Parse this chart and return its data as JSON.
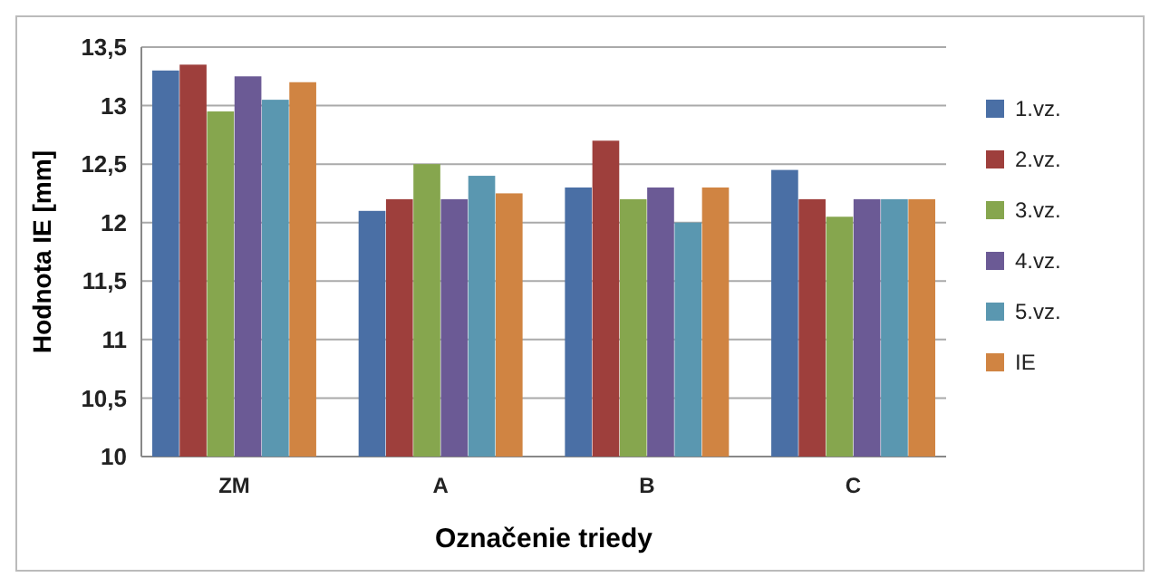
{
  "chart_data": {
    "type": "bar",
    "xlabel": "Označenie triedy",
    "ylabel": "Hodnota IE [mm]",
    "categories": [
      "ZM",
      "A",
      "B",
      "C"
    ],
    "series": [
      {
        "name": "1.vz.",
        "color": "#4a6fa5",
        "values": [
          13.3,
          12.1,
          12.3,
          12.45
        ]
      },
      {
        "name": "2.vz.",
        "color": "#9e3f3c",
        "values": [
          13.35,
          12.2,
          12.7,
          12.2
        ]
      },
      {
        "name": "3.vz.",
        "color": "#86a64e",
        "values": [
          12.95,
          12.5,
          12.2,
          12.05
        ]
      },
      {
        "name": "4.vz.",
        "color": "#6b5a95",
        "values": [
          13.25,
          12.2,
          12.3,
          12.2
        ]
      },
      {
        "name": "5.vz.",
        "color": "#5a97b0",
        "values": [
          13.05,
          12.4,
          12.0,
          12.2
        ]
      },
      {
        "name": "IE",
        "color": "#d08442",
        "values": [
          13.2,
          12.25,
          12.3,
          12.2
        ]
      }
    ],
    "ylim": [
      10,
      13.5
    ],
    "yticks": [
      10,
      {
        "value": 10.5,
        "label": "10,5"
      },
      11,
      {
        "value": 11.5,
        "label": "11,5"
      },
      12,
      {
        "value": 12.5,
        "label": "12,5"
      },
      13,
      {
        "value": 13.5,
        "label": "13,5"
      }
    ],
    "grid": "y",
    "legend": "right"
  }
}
